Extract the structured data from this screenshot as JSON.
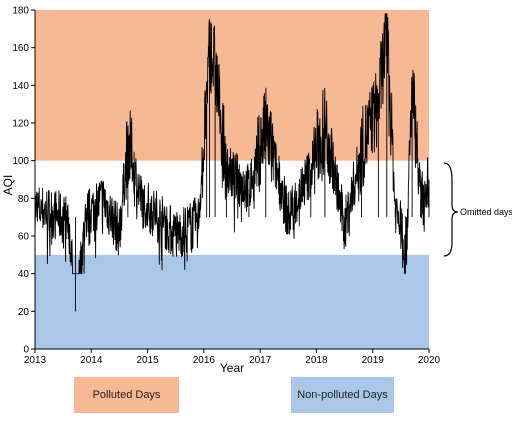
{
  "chart_data": {
    "type": "line",
    "xlabel": "Year",
    "ylabel": "AQI",
    "xlim": [
      2013,
      2020
    ],
    "ylim": [
      0,
      180
    ],
    "x_ticks": [
      "2013",
      "2014",
      "2015",
      "2016",
      "2017",
      "2018",
      "2019",
      "2020"
    ],
    "y_ticks": [
      "0",
      "20",
      "40",
      "60",
      "80",
      "100",
      "120",
      "140",
      "160",
      "180"
    ],
    "bands": [
      {
        "name": "Polluted Days",
        "from": 100,
        "to": 180,
        "color": "#f7b894"
      },
      {
        "name": "Non-polluted Days",
        "from": 0,
        "to": 50,
        "color": "#a9c8e8"
      }
    ],
    "omitted_range": [
      50,
      100
    ],
    "annotation": "Omitted days",
    "line_color": "#000000",
    "series_sketch": {
      "description_points": [
        [
          2013.0,
          75
        ],
        [
          2013.3,
          72
        ],
        [
          2013.6,
          68
        ],
        [
          2013.72,
          20
        ],
        [
          2013.9,
          70
        ],
        [
          2014.2,
          80
        ],
        [
          2014.5,
          62
        ],
        [
          2014.65,
          110
        ],
        [
          2014.9,
          78
        ],
        [
          2015.2,
          70
        ],
        [
          2015.5,
          60
        ],
        [
          2015.9,
          68
        ],
        [
          2016.05,
          130
        ],
        [
          2016.1,
          160
        ],
        [
          2016.2,
          150
        ],
        [
          2016.4,
          95
        ],
        [
          2016.8,
          85
        ],
        [
          2017.1,
          118
        ],
        [
          2017.5,
          70
        ],
        [
          2017.9,
          95
        ],
        [
          2018.15,
          120
        ],
        [
          2018.5,
          65
        ],
        [
          2018.8,
          105
        ],
        [
          2019.1,
          130
        ],
        [
          2019.25,
          170
        ],
        [
          2019.4,
          75
        ],
        [
          2019.6,
          55
        ],
        [
          2019.7,
          142
        ],
        [
          2019.85,
          80
        ],
        [
          2020.0,
          90
        ]
      ]
    }
  },
  "legend": {
    "polluted_label": "Polluted Days",
    "nonpolluted_label": "Non-polluted Days",
    "polluted_color": "#f7b894",
    "nonpolluted_color": "#a9c8e8"
  }
}
